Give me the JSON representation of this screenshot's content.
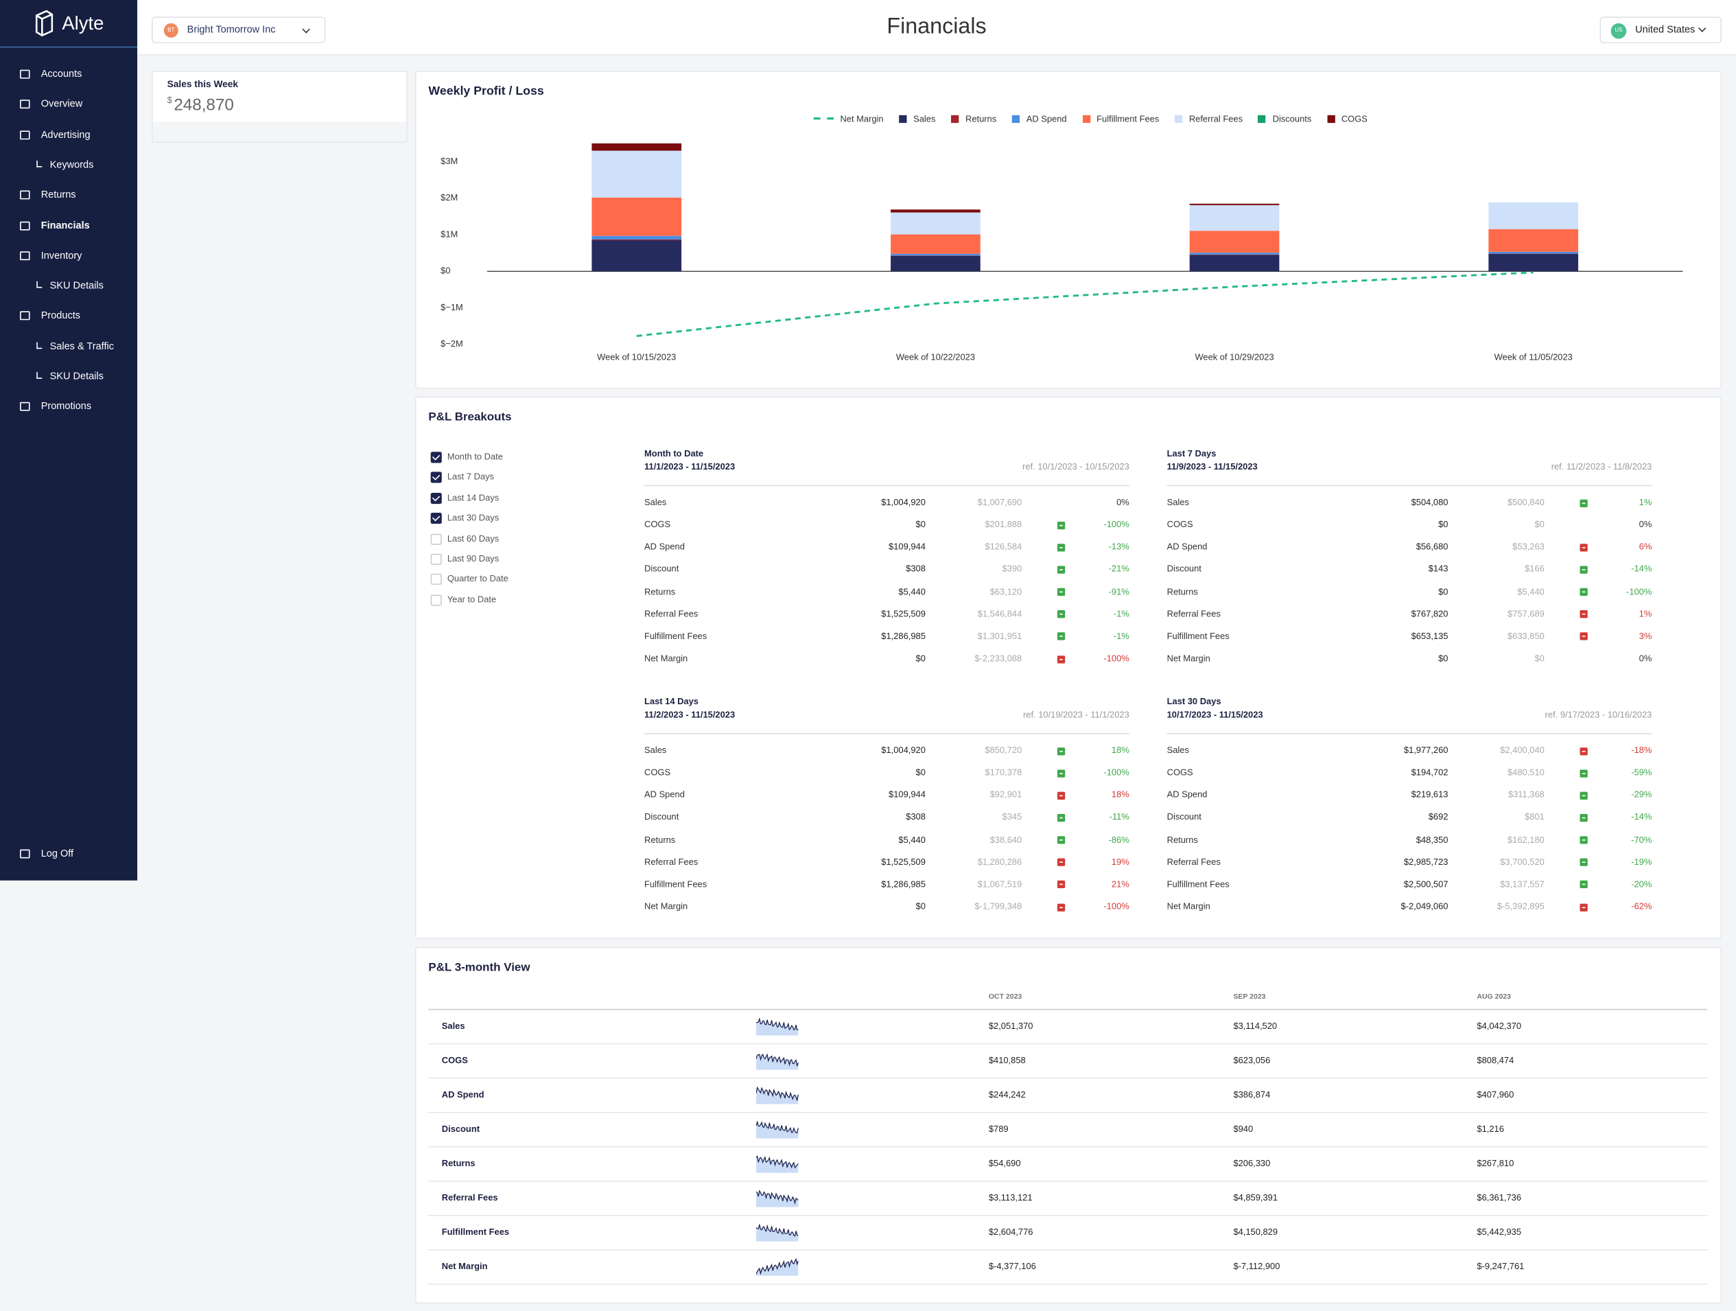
{
  "sidebar": {
    "brand": "Alyte",
    "nav": [
      {
        "label": "Accounts"
      },
      {
        "label": "Overview"
      },
      {
        "label": "Advertising",
        "children": [
          "Keywords"
        ]
      },
      {
        "label": "Returns"
      },
      {
        "label": "Financials",
        "active": true
      },
      {
        "label": "Inventory",
        "children": [
          "SKU Details"
        ]
      },
      {
        "label": "Products",
        "children": [
          "Sales & Traffic",
          "SKU Details"
        ]
      },
      {
        "label": "Promotions"
      }
    ],
    "logoff": "Log Off"
  },
  "header": {
    "account_initials": "BT",
    "account": "Bright Tomorrow Inc",
    "title": "Financials",
    "country_code": "US",
    "country": "United States"
  },
  "kpi": {
    "label": "Sales this Week",
    "currency": "$",
    "value": "248,870"
  },
  "chart_data": {
    "type": "bar",
    "stacked": true,
    "title": "Weekly Profit / Loss",
    "categories": [
      "Week of 10/15/2023",
      "Week of 10/22/2023",
      "Week of 10/29/2023",
      "Week of 11/05/2023"
    ],
    "series": [
      {
        "name": "Net Margin",
        "type": "line",
        "color": "#22b98a",
        "values": [
          -1770000,
          -880000,
          -420000,
          -30000
        ]
      },
      {
        "name": "Sales",
        "color": "#262b5f",
        "values": [
          850000,
          420000,
          450000,
          480000
        ]
      },
      {
        "name": "Returns",
        "color": "#a4262c",
        "values": [
          20000,
          10000,
          10000,
          5000
        ]
      },
      {
        "name": "AD Spend",
        "color": "#4a8fe0",
        "values": [
          100000,
          50000,
          50000,
          50000
        ]
      },
      {
        "name": "Fulfillment Fees",
        "color": "#ff6b4a",
        "values": [
          1050000,
          530000,
          600000,
          620000
        ]
      },
      {
        "name": "Referral Fees",
        "color": "#cfe0fa",
        "values": [
          1280000,
          600000,
          700000,
          730000
        ]
      },
      {
        "name": "Discounts",
        "color": "#16a06a",
        "values": [
          1000,
          1000,
          1000,
          1000
        ]
      },
      {
        "name": "COGS",
        "color": "#7b0d0f",
        "values": [
          200000,
          80000,
          40000,
          0
        ]
      }
    ],
    "ylim": [
      -2200000,
      3700000
    ],
    "yticks": [
      {
        "value": -2000000,
        "label": "$−2M"
      },
      {
        "value": -1000000,
        "label": "$−1M"
      },
      {
        "value": 0,
        "label": "$0"
      },
      {
        "value": 1000000,
        "label": "$1M"
      },
      {
        "value": 2000000,
        "label": "$2M"
      },
      {
        "value": 3000000,
        "label": "$3M"
      }
    ],
    "grid": false
  },
  "breakouts": {
    "title": "P&L Breakouts",
    "periods": [
      {
        "label": "Month to Date",
        "checked": true
      },
      {
        "label": "Last 7 Days",
        "checked": true
      },
      {
        "label": "Last 14 Days",
        "checked": true
      },
      {
        "label": "Last 30 Days",
        "checked": true
      },
      {
        "label": "Last 60 Days",
        "checked": false
      },
      {
        "label": "Last 90 Days",
        "checked": false
      },
      {
        "label": "Quarter to Date",
        "checked": false
      },
      {
        "label": "Year to Date",
        "checked": false
      }
    ],
    "panels": [
      {
        "title": "Month to Date",
        "range": "11/1/2023 - 11/15/2023",
        "ref": "ref. 10/1/2023 - 10/15/2023",
        "rows": [
          {
            "label": "Sales",
            "value": "$1,004,920",
            "ref_value": "$1,007,690",
            "change": "0%",
            "status": "neutral"
          },
          {
            "label": "COGS",
            "value": "$0",
            "ref_value": "$201,888",
            "change": "-100%",
            "status": "good"
          },
          {
            "label": "AD Spend",
            "value": "$109,944",
            "ref_value": "$126,584",
            "change": "-13%",
            "status": "good"
          },
          {
            "label": "Discount",
            "value": "$308",
            "ref_value": "$390",
            "change": "-21%",
            "status": "good"
          },
          {
            "label": "Returns",
            "value": "$5,440",
            "ref_value": "$63,120",
            "change": "-91%",
            "status": "good"
          },
          {
            "label": "Referral Fees",
            "value": "$1,525,509",
            "ref_value": "$1,546,844",
            "change": "-1%",
            "status": "good"
          },
          {
            "label": "Fulfillment Fees",
            "value": "$1,286,985",
            "ref_value": "$1,301,951",
            "change": "-1%",
            "status": "good"
          },
          {
            "label": "Net Margin",
            "value": "$0",
            "ref_value": "$-2,233,088",
            "change": "-100%",
            "status": "bad"
          }
        ]
      },
      {
        "title": "Last 7 Days",
        "range": "11/9/2023 - 11/15/2023",
        "ref": "ref. 11/2/2023 - 11/8/2023",
        "rows": [
          {
            "label": "Sales",
            "value": "$504,080",
            "ref_value": "$500,840",
            "change": "1%",
            "status": "good"
          },
          {
            "label": "COGS",
            "value": "$0",
            "ref_value": "$0",
            "change": "0%",
            "status": "neutral"
          },
          {
            "label": "AD Spend",
            "value": "$56,680",
            "ref_value": "$53,263",
            "change": "6%",
            "status": "bad"
          },
          {
            "label": "Discount",
            "value": "$143",
            "ref_value": "$166",
            "change": "-14%",
            "status": "good"
          },
          {
            "label": "Returns",
            "value": "$0",
            "ref_value": "$5,440",
            "change": "-100%",
            "status": "good"
          },
          {
            "label": "Referral Fees",
            "value": "$767,820",
            "ref_value": "$757,689",
            "change": "1%",
            "status": "bad"
          },
          {
            "label": "Fulfillment Fees",
            "value": "$653,135",
            "ref_value": "$633,850",
            "change": "3%",
            "status": "bad"
          },
          {
            "label": "Net Margin",
            "value": "$0",
            "ref_value": "$0",
            "change": "0%",
            "status": "neutral"
          }
        ]
      },
      {
        "title": "Last 14 Days",
        "range": "11/2/2023 - 11/15/2023",
        "ref": "ref. 10/19/2023 - 11/1/2023",
        "rows": [
          {
            "label": "Sales",
            "value": "$1,004,920",
            "ref_value": "$850,720",
            "change": "18%",
            "status": "good"
          },
          {
            "label": "COGS",
            "value": "$0",
            "ref_value": "$170,378",
            "change": "-100%",
            "status": "good"
          },
          {
            "label": "AD Spend",
            "value": "$109,944",
            "ref_value": "$92,901",
            "change": "18%",
            "status": "bad"
          },
          {
            "label": "Discount",
            "value": "$308",
            "ref_value": "$345",
            "change": "-11%",
            "status": "good"
          },
          {
            "label": "Returns",
            "value": "$5,440",
            "ref_value": "$38,640",
            "change": "-86%",
            "status": "good"
          },
          {
            "label": "Referral Fees",
            "value": "$1,525,509",
            "ref_value": "$1,280,286",
            "change": "19%",
            "status": "bad"
          },
          {
            "label": "Fulfillment Fees",
            "value": "$1,286,985",
            "ref_value": "$1,067,519",
            "change": "21%",
            "status": "bad"
          },
          {
            "label": "Net Margin",
            "value": "$0",
            "ref_value": "$-1,799,348",
            "change": "-100%",
            "status": "bad"
          }
        ]
      },
      {
        "title": "Last 30 Days",
        "range": "10/17/2023 - 11/15/2023",
        "ref": "ref. 9/17/2023 - 10/16/2023",
        "rows": [
          {
            "label": "Sales",
            "value": "$1,977,260",
            "ref_value": "$2,400,040",
            "change": "-18%",
            "status": "bad"
          },
          {
            "label": "COGS",
            "value": "$194,702",
            "ref_value": "$480,510",
            "change": "-59%",
            "status": "good"
          },
          {
            "label": "AD Spend",
            "value": "$219,613",
            "ref_value": "$311,368",
            "change": "-29%",
            "status": "good"
          },
          {
            "label": "Discount",
            "value": "$692",
            "ref_value": "$801",
            "change": "-14%",
            "status": "good"
          },
          {
            "label": "Returns",
            "value": "$48,350",
            "ref_value": "$162,180",
            "change": "-70%",
            "status": "good"
          },
          {
            "label": "Referral Fees",
            "value": "$2,985,723",
            "ref_value": "$3,700,520",
            "change": "-19%",
            "status": "good"
          },
          {
            "label": "Fulfillment Fees",
            "value": "$2,500,507",
            "ref_value": "$3,137,557",
            "change": "-20%",
            "status": "good"
          },
          {
            "label": "Net Margin",
            "value": "$-2,049,060",
            "ref_value": "$-5,392,895",
            "change": "-62%",
            "status": "bad"
          }
        ]
      }
    ]
  },
  "three_month": {
    "title": "P&L 3-month View",
    "columns": [
      "OCT 2023",
      "SEP 2023",
      "AUG 2023"
    ],
    "rows": [
      {
        "label": "Sales",
        "values": [
          "$2,051,370",
          "$3,114,520",
          "$4,042,370"
        ]
      },
      {
        "label": "COGS",
        "values": [
          "$410,858",
          "$623,056",
          "$808,474"
        ]
      },
      {
        "label": "AD Spend",
        "values": [
          "$244,242",
          "$386,874",
          "$407,960"
        ]
      },
      {
        "label": "Discount",
        "values": [
          "$789",
          "$940",
          "$1,216"
        ]
      },
      {
        "label": "Returns",
        "values": [
          "$54,690",
          "$206,330",
          "$267,810"
        ]
      },
      {
        "label": "Referral Fees",
        "values": [
          "$3,113,121",
          "$4,859,391",
          "$6,361,736"
        ]
      },
      {
        "label": "Fulfillment Fees",
        "values": [
          "$2,604,776",
          "$4,150,829",
          "$5,442,935"
        ]
      },
      {
        "label": "Net Margin",
        "values": [
          "$-4,377,106",
          "$-7,112,900",
          "$-9,247,761"
        ]
      }
    ]
  }
}
